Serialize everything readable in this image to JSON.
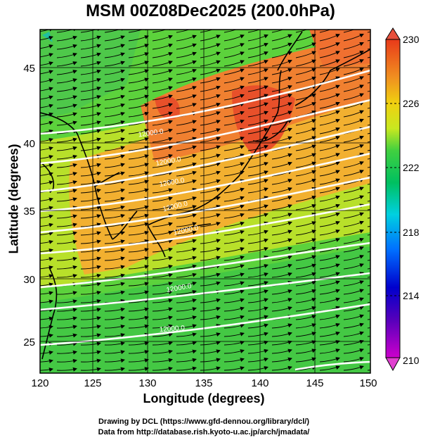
{
  "title": "MSM 00Z08Dec2025 (200.0hPa)",
  "xlabel": "Longitude (degrees)",
  "ylabel": "Latitude  (degrees)",
  "x_ticks": [
    "120",
    "125",
    "130",
    "135",
    "140",
    "145",
    "150"
  ],
  "y_ticks": [
    "25",
    "30",
    "35",
    "40",
    "45"
  ],
  "colorbar": {
    "ticks": [
      "230",
      "226",
      "222",
      "218",
      "214",
      "210"
    ],
    "min": 210,
    "max": 230
  },
  "contour_labels": [
    "12000.0",
    "12000.0",
    "12000.0",
    "12000.0",
    "12000.0",
    "12000.0",
    "12000.0"
  ],
  "footer": {
    "line1": "Drawing by DCL (https://www.gfd-dennou.org/library/dcl/)",
    "line2": "Data from http://database.rish.kyoto-u.ac.jp/arch/jmadata/"
  },
  "chart_data": {
    "type": "heatmap",
    "title": "MSM 00Z08Dec2025 (200.0hPa)",
    "xlabel": "Longitude (degrees)",
    "ylabel": "Latitude  (degrees)",
    "xlim": [
      120,
      150
    ],
    "ylim": [
      22.4,
      47.6
    ],
    "colorbar_range": [
      210,
      230
    ],
    "overlay": [
      "wind vectors (eastward)",
      "geopotential height contours (white)",
      "coastlines (black)"
    ]
  }
}
